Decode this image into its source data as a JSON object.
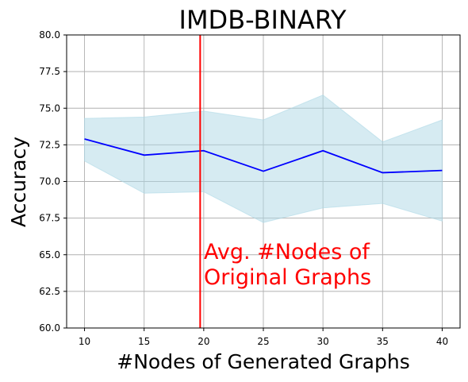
{
  "chart_data": {
    "type": "line",
    "title": "IMDB-BINARY",
    "xlabel": "#Nodes of Generated Graphs",
    "ylabel": "Accuracy",
    "xlim": [
      8.5,
      41.5
    ],
    "ylim": [
      60.0,
      80.0
    ],
    "x_ticks": [
      10,
      15,
      20,
      25,
      30,
      35,
      40
    ],
    "x_tick_labels": [
      "10",
      "15",
      "20",
      "25",
      "30",
      "35",
      "40"
    ],
    "y_ticks": [
      60.0,
      62.5,
      65.0,
      67.5,
      70.0,
      72.5,
      75.0,
      77.5,
      80.0
    ],
    "y_tick_labels": [
      "60.0",
      "62.5",
      "65.0",
      "67.5",
      "70.0",
      "72.5",
      "75.0",
      "77.5",
      "80.0"
    ],
    "grid": true,
    "x": [
      10,
      15,
      20,
      25,
      30,
      35,
      40
    ],
    "series": [
      {
        "values": [
          72.9,
          71.8,
          72.1,
          70.7,
          72.1,
          70.6,
          70.75
        ],
        "lower": [
          71.4,
          69.2,
          69.3,
          67.2,
          68.2,
          68.5,
          67.3
        ],
        "upper": [
          74.3,
          74.4,
          74.8,
          74.2,
          75.9,
          72.7,
          74.2
        ],
        "color": "#0000ff",
        "band_color": "#add8e6"
      }
    ],
    "vline": {
      "x": 19.7,
      "color": "#ff0000"
    },
    "annotation": {
      "lines": [
        "Avg. #Nodes of",
        "Original Graphs"
      ],
      "color": "#ff0000"
    }
  }
}
